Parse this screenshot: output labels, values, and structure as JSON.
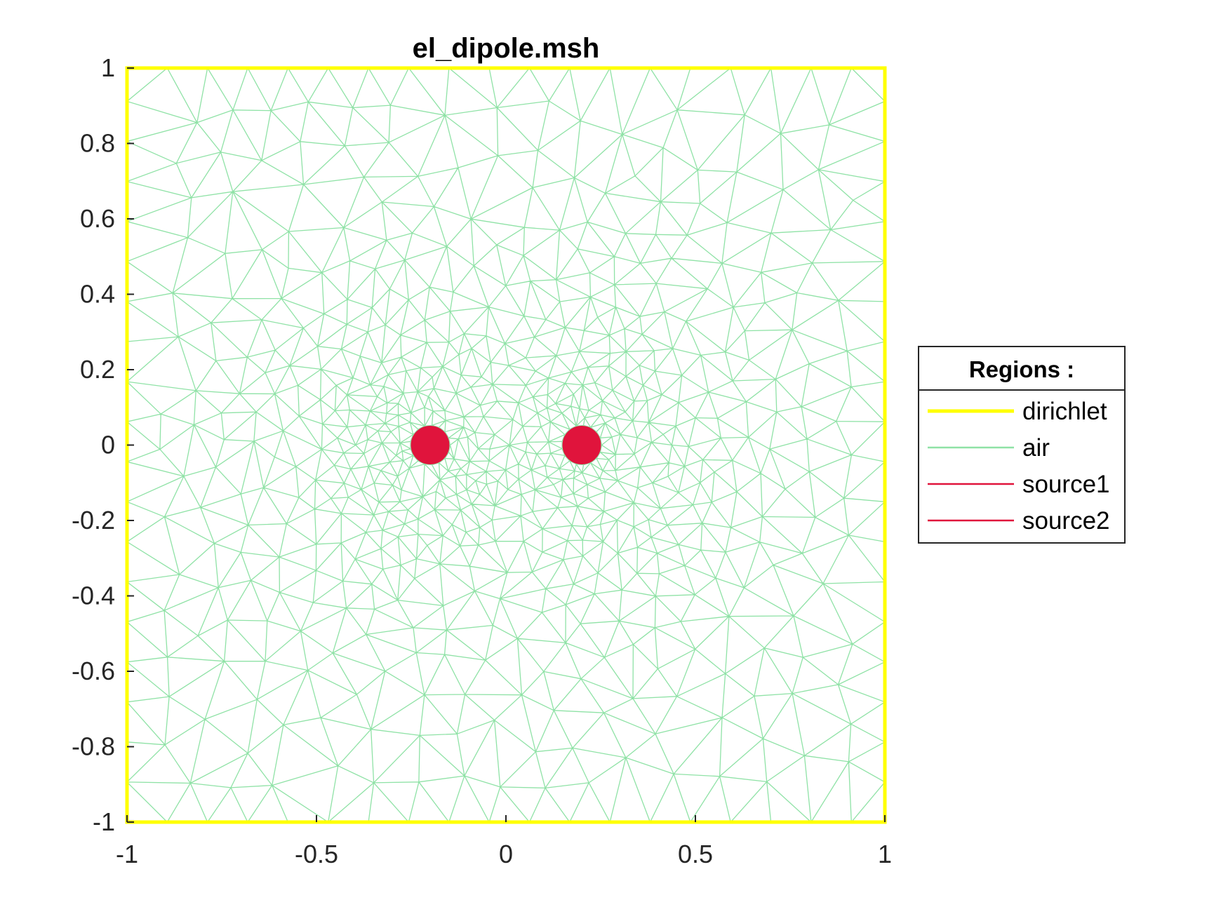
{
  "figure": {
    "title": "el_dipole.msh"
  },
  "chart_data": {
    "type": "mesh",
    "title": "el_dipole.msh",
    "xlabel": "",
    "ylabel": "",
    "xlim": [
      -1,
      1
    ],
    "ylim": [
      -1,
      1
    ],
    "x_ticks": [
      -1,
      -0.5,
      0,
      0.5,
      1
    ],
    "x_tick_labels": [
      "-1",
      "-0.5",
      "0",
      "0.5",
      "1"
    ],
    "y_ticks": [
      -1,
      -0.8,
      -0.6,
      -0.4,
      -0.2,
      0,
      0.2,
      0.4,
      0.6,
      0.8,
      1
    ],
    "y_tick_labels": [
      "-1",
      "-0.8",
      "-0.6",
      "-0.4",
      "-0.2",
      "0",
      "0.2",
      "0.4",
      "0.6",
      "0.8",
      "1"
    ],
    "grid": false,
    "legend_placement": "right",
    "legend": {
      "title": "Regions :",
      "entries": [
        {
          "label": "dirichlet",
          "color": "#ffff00",
          "style": "thick-line"
        },
        {
          "label": "air",
          "color": "#8fe2a6",
          "style": "line"
        },
        {
          "label": "source1",
          "color": "#e0143c",
          "style": "line"
        },
        {
          "label": "source2",
          "color": "#e0143c",
          "style": "line"
        }
      ]
    },
    "regions": [
      {
        "name": "dirichlet",
        "shape": "square boundary",
        "x_range": [
          -1,
          1
        ],
        "y_range": [
          -1,
          1
        ],
        "color": "#ffff00"
      },
      {
        "name": "air",
        "shape": "triangular mesh",
        "color": "#8fe2a6"
      },
      {
        "name": "source1",
        "shape": "disk",
        "center": [
          -0.2,
          0
        ],
        "radius": 0.05,
        "color": "#e0143c"
      },
      {
        "name": "source2",
        "shape": "disk",
        "center": [
          0.2,
          0
        ],
        "radius": 0.05,
        "color": "#e0143c"
      }
    ]
  }
}
